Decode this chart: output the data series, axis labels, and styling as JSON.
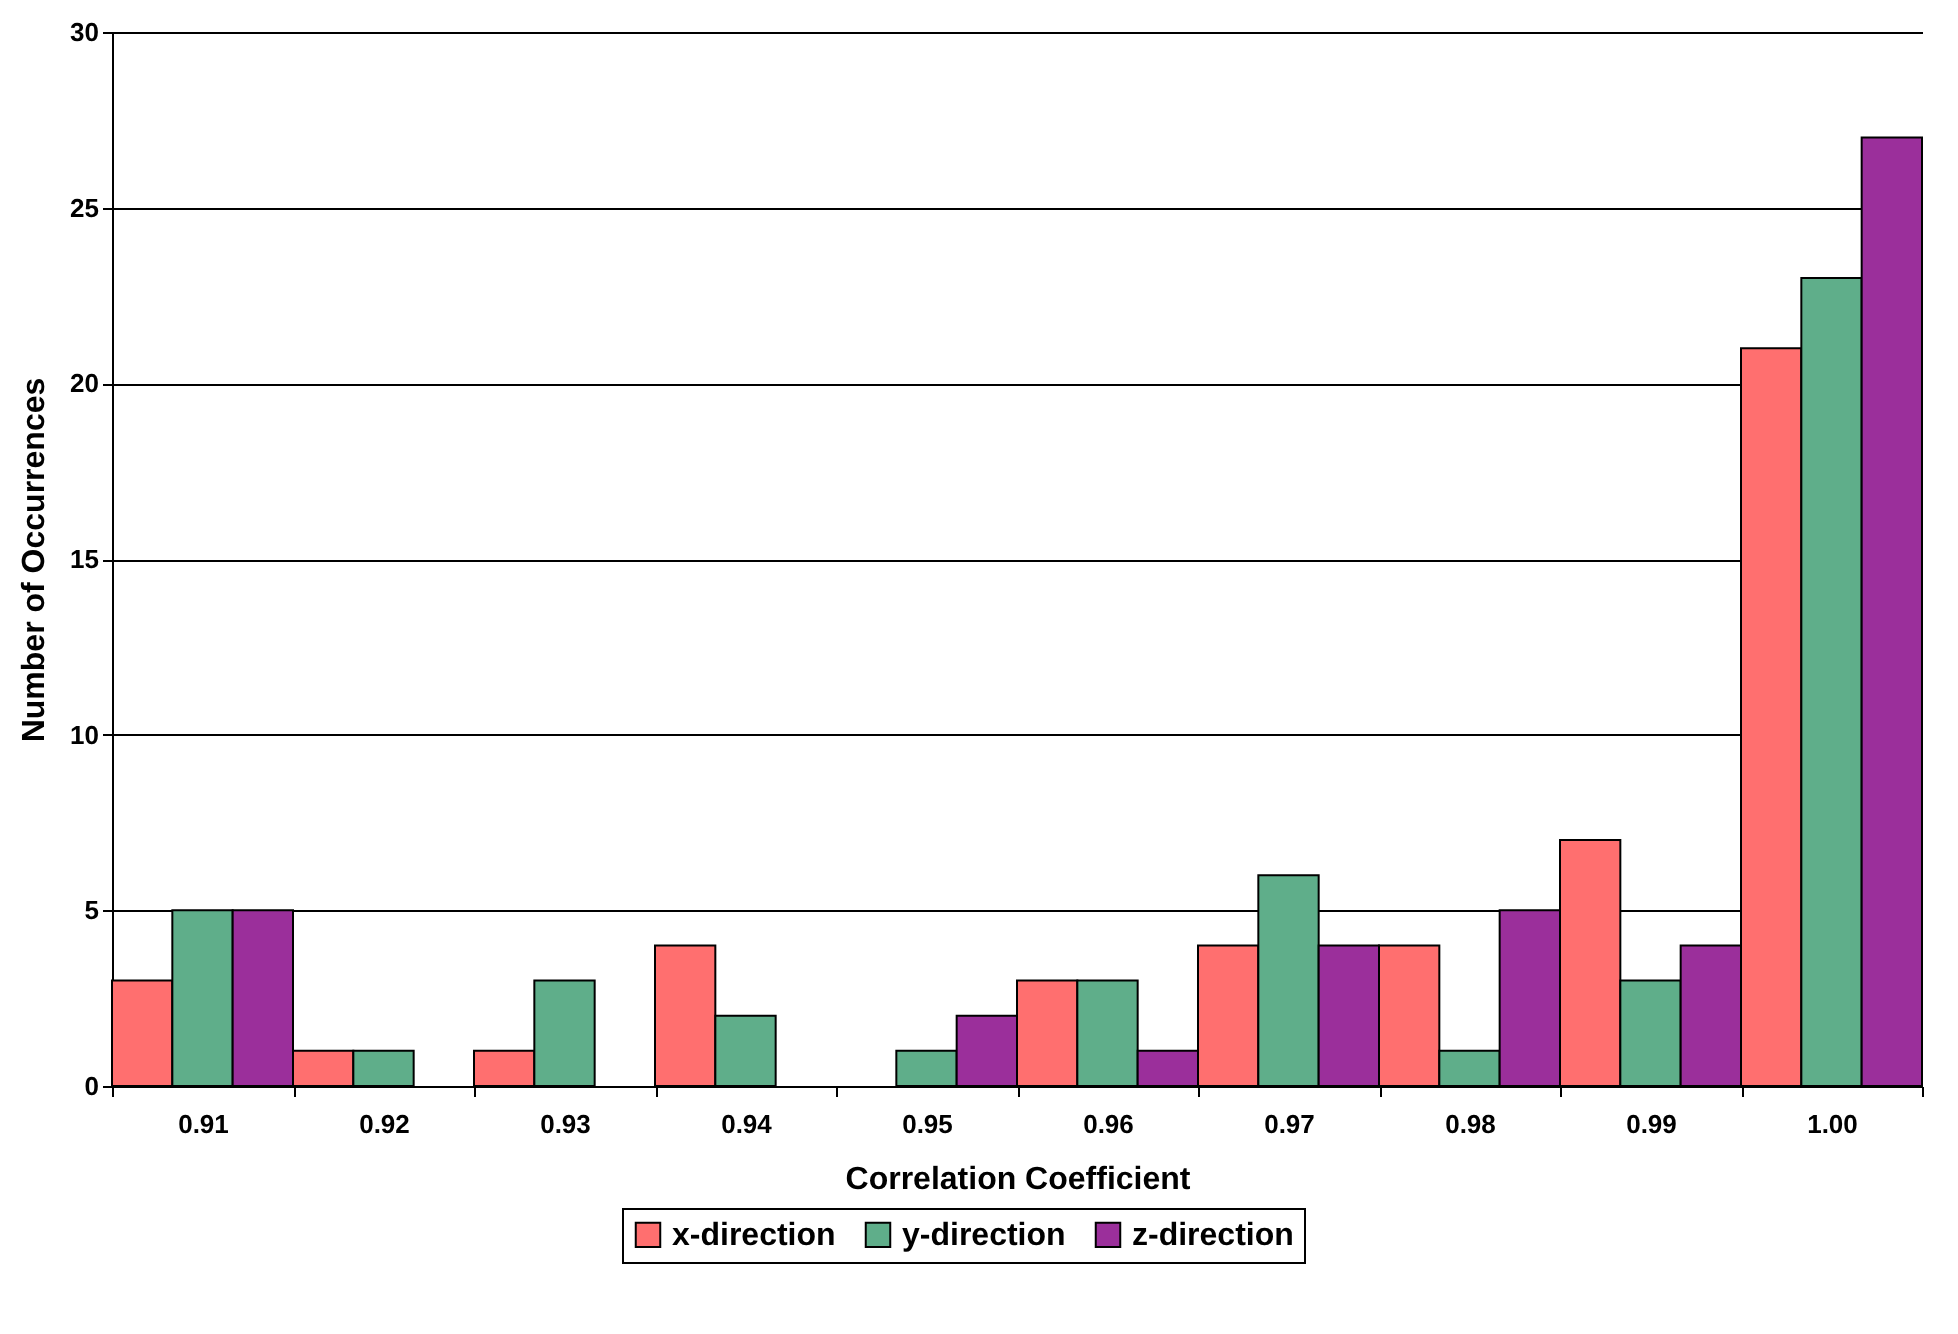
{
  "chart_data": {
    "type": "bar",
    "xlabel": "Correlation Coefficient",
    "ylabel": "Number of Occurrences",
    "categories": [
      "0.91",
      "0.92",
      "0.93",
      "0.94",
      "0.95",
      "0.96",
      "0.97",
      "0.98",
      "0.99",
      "1.00"
    ],
    "series": [
      {
        "name": "x-direction",
        "color": "#ff6f6f",
        "values": [
          3,
          1,
          1,
          4,
          0,
          3,
          4,
          4,
          7,
          21
        ]
      },
      {
        "name": "y-direction",
        "color": "#5fae8a",
        "values": [
          5,
          1,
          3,
          2,
          1,
          3,
          6,
          1,
          3,
          23
        ]
      },
      {
        "name": "z-direction",
        "color": "#9b2f9b",
        "values": [
          5,
          0,
          0,
          0,
          2,
          1,
          4,
          5,
          4,
          27
        ]
      }
    ],
    "ylim": [
      0,
      30
    ],
    "yticks": [
      0,
      5,
      10,
      15,
      20,
      25,
      30
    ],
    "grid": "y",
    "legend": "bottom"
  }
}
